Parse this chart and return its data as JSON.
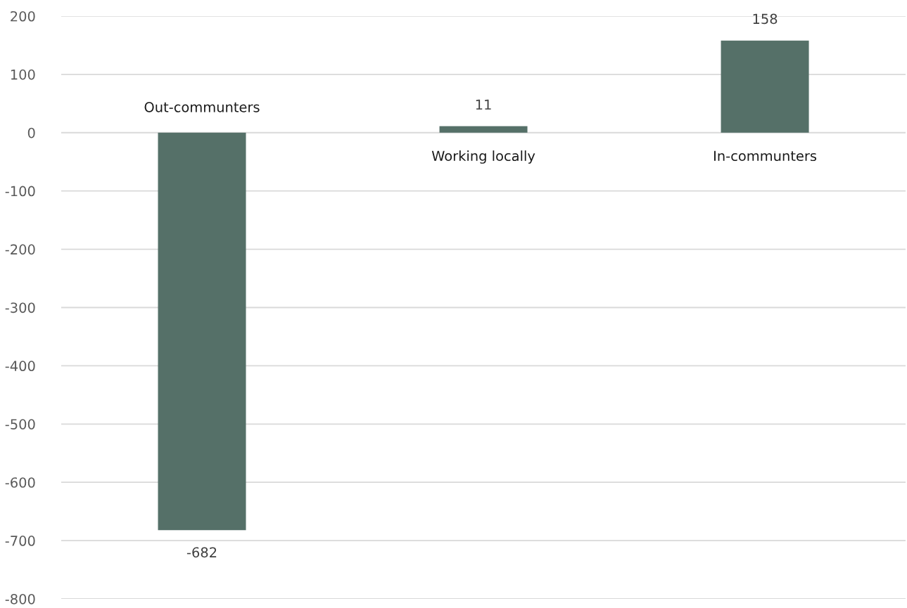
{
  "chart_data": {
    "type": "bar",
    "categories": [
      "Out-communters",
      "Working locally",
      "In-communters"
    ],
    "values": [
      -682,
      11,
      158
    ],
    "color": "#557068",
    "ylim": [
      -800,
      200
    ],
    "yticks": [
      -800,
      -700,
      -600,
      -500,
      -400,
      -300,
      -200,
      -100,
      0,
      100,
      200
    ],
    "grid": "y",
    "data_labels": true
  }
}
